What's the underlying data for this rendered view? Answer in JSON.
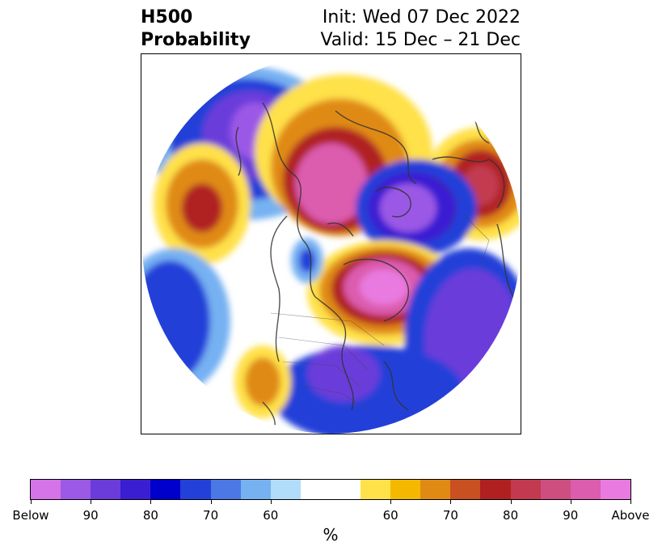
{
  "header": {
    "title_line1": "H500",
    "title_line2": "Probability",
    "init": "Init: Wed 07 Dec 2022",
    "valid": "Valid: 15 Dec – 21 Dec"
  },
  "colorbar": {
    "unit": "%",
    "colors": [
      "#d573e8",
      "#9b59e6",
      "#6b3cda",
      "#3a1fd2",
      "#0000cd",
      "#2340d8",
      "#4c78e6",
      "#76b1f2",
      "#b1dcfa",
      "#ffffff",
      "#ffe14a",
      "#f5b800",
      "#e08a14",
      "#c95020",
      "#b02020",
      "#c23a50",
      "#cd4f80",
      "#dc5cae",
      "#e87ae0"
    ],
    "tick_labels": [
      "Below",
      "90",
      "80",
      "70",
      "60",
      "60",
      "70",
      "80",
      "90",
      "Above"
    ]
  },
  "map": {
    "colors": {
      "below_strong": "#d573e8",
      "below_mid": "#6b3cda",
      "below_dark": "#0000cd",
      "below_light": "#76b1f2",
      "above_light": "#ffe14a",
      "above_mid": "#e08a14",
      "above_dark": "#b02020",
      "above_strong": "#dc5cae",
      "coastline": "#333333"
    }
  }
}
